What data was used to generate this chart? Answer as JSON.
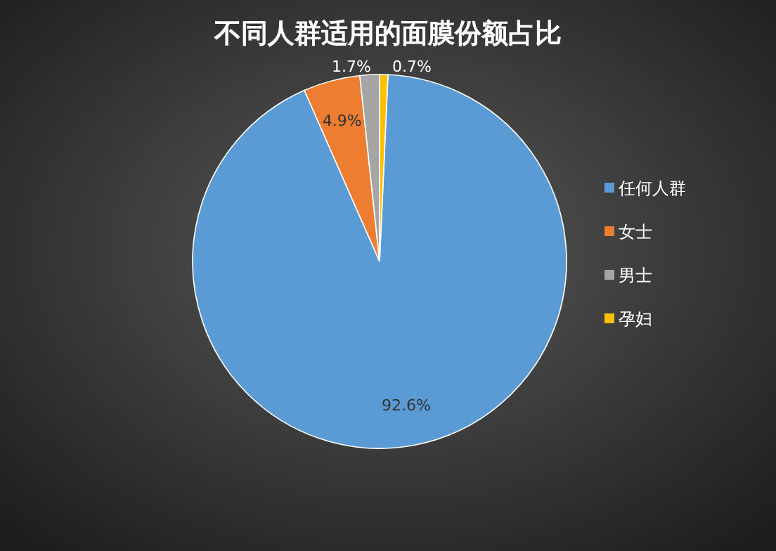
{
  "chart_data": {
    "type": "pie",
    "title": "不同人群适用的面膜份额占比",
    "categories": [
      "任何人群",
      "女士",
      "男士",
      "孕妇"
    ],
    "values": [
      92.6,
      4.9,
      1.7,
      0.7
    ],
    "colors": [
      "#5b9bd5",
      "#ed7d31",
      "#a5a5a5",
      "#ffc000"
    ],
    "value_labels": [
      "92.6%",
      "4.9%",
      "1.7%",
      "0.7%"
    ],
    "legend": "right"
  }
}
